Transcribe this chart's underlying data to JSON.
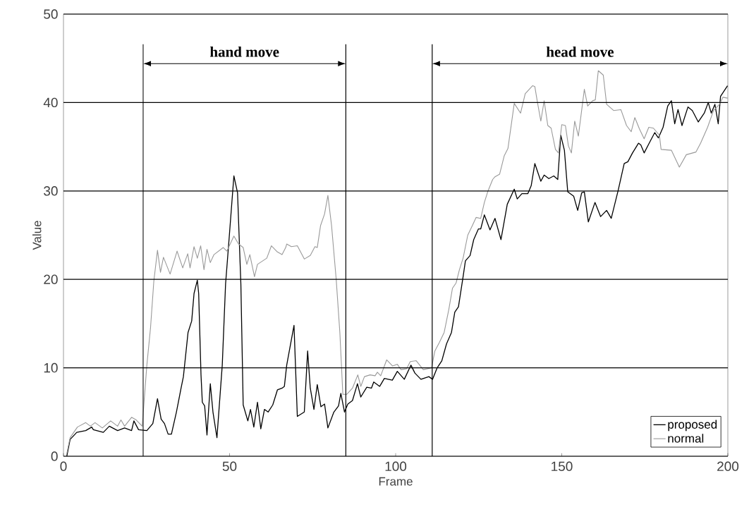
{
  "chart_data": {
    "type": "line",
    "xlabel": "Frame",
    "ylabel": "Value",
    "xlim": [
      0,
      200
    ],
    "xticks": [
      0,
      50,
      100,
      150,
      200
    ],
    "ylim": [
      0,
      50
    ],
    "yticks": [
      0,
      10,
      20,
      30,
      40,
      50
    ],
    "grid": "y",
    "legend": "bottom right",
    "marker": "none",
    "line_style": "solid",
    "ref_lines": [
      {
        "axis": "x",
        "value": 24,
        "color": "#000000"
      },
      {
        "axis": "x",
        "value": 85,
        "color": "#000000"
      },
      {
        "axis": "x",
        "value": 111,
        "color": "#000000"
      }
    ],
    "annotations": [
      "hand move",
      "head move"
    ],
    "series": [
      {
        "name": "proposed",
        "color": "#000000",
        "x": [
          1,
          2,
          4,
          6.7,
          8.5,
          9,
          12,
          13.8,
          16.3,
          18.4,
          20.5,
          21.2,
          22.6,
          25.1,
          26.9,
          28.3,
          29.4,
          30.4,
          31.5,
          32.5,
          34,
          35.4,
          36.1,
          37.5,
          38.6,
          39.3,
          40.3,
          40.7,
          41.4,
          41.8,
          42.5,
          43.2,
          44.2,
          45,
          46.2,
          47.8,
          48.8,
          49.9,
          51.3,
          52.4,
          53.4,
          54.1,
          55.5,
          56.3,
          57.3,
          58.4,
          59.4,
          60.5,
          61.6,
          63,
          64.4,
          65.8,
          66.5,
          67.2,
          69.4,
          70.4,
          72.5,
          73.5,
          74.3,
          75.4,
          76.4,
          77.5,
          78.6,
          79.6,
          81.4,
          82.8,
          83.5,
          84.6,
          85.6,
          87,
          88.5,
          89.5,
          91.3,
          92.7,
          93.4,
          95.2,
          96.6,
          99,
          100.5,
          102.6,
          104.6,
          105.8,
          107.6,
          110,
          111.1,
          112.5,
          113.9,
          115.3,
          116.8,
          117.8,
          118.9,
          120.3,
          121,
          122.4,
          123.5,
          124.9,
          125.6,
          126.7,
          128.4,
          129.9,
          131.7,
          133.6,
          135.7,
          136.6,
          138,
          139.8,
          140.8,
          141.9,
          143.7,
          144.7,
          146.1,
          147.6,
          148.8,
          149.7,
          150.8,
          151.8,
          153.6,
          154.8,
          156,
          156.8,
          158,
          160,
          161.7,
          163.5,
          164.9,
          167,
          168.8,
          169.9,
          171.3,
          173.1,
          173.8,
          174.8,
          176.6,
          178,
          179.1,
          180.5,
          181.9,
          183,
          184,
          185,
          186.2,
          188,
          189.3,
          191.1,
          192.9,
          194.1,
          195,
          196.1,
          197.1,
          197.8,
          198.5,
          199.9
        ],
        "values": [
          0,
          1.9,
          2.7,
          2.9,
          3.3,
          3.0,
          2.7,
          3.4,
          2.9,
          3.2,
          2.9,
          4.0,
          3.0,
          2.9,
          3.7,
          6.5,
          4.2,
          3.7,
          2.5,
          2.5,
          5.0,
          7.7,
          9.0,
          14.0,
          15.3,
          18.4,
          19.9,
          18.4,
          9.2,
          6.1,
          5.7,
          2.4,
          8.2,
          5.0,
          2.1,
          10.3,
          19.5,
          24.8,
          31.7,
          29.8,
          19.5,
          5.8,
          4.0,
          5.3,
          3.3,
          6.1,
          3.1,
          5.3,
          5.0,
          5.8,
          7.5,
          7.7,
          7.9,
          10.3,
          14.8,
          4.5,
          5.0,
          11.9,
          7.7,
          5.3,
          8.1,
          5.6,
          5.9,
          3.2,
          5.0,
          5.7,
          7.1,
          5.0,
          5.9,
          6.3,
          8.2,
          6.7,
          7.8,
          7.7,
          8.4,
          7.9,
          8.8,
          8.6,
          9.6,
          8.7,
          10.3,
          9.4,
          8.7,
          9.0,
          8.7,
          10.0,
          10.8,
          12.7,
          14.0,
          16.3,
          16.9,
          20.3,
          22.1,
          22.7,
          24.5,
          25.7,
          25.7,
          27.3,
          25.6,
          26.9,
          24.5,
          28.5,
          30.2,
          29.1,
          29.7,
          29.7,
          30.6,
          33.1,
          31.1,
          31.8,
          31.4,
          31.7,
          31.3,
          36.3,
          34.6,
          29.9,
          29.4,
          27.8,
          29.8,
          29.9,
          26.5,
          28.7,
          27.1,
          27.8,
          26.9,
          30.1,
          33.1,
          33.3,
          34.3,
          35.4,
          35.2,
          34.3,
          35.6,
          36.6,
          36.0,
          37.2,
          39.6,
          40.2,
          37.6,
          39.2,
          37.4,
          39.5,
          39.1,
          37.8,
          38.8,
          40.0,
          38.8,
          39.8,
          37.6,
          40.7,
          41.1,
          41.9
        ]
      },
      {
        "name": "normal",
        "color": "#999999",
        "x": [
          1,
          2,
          4.2,
          6.7,
          8.1,
          9.5,
          11.7,
          14.2,
          16.3,
          17.3,
          18.4,
          20.5,
          21.9,
          23.7,
          25.1,
          26.2,
          27.2,
          28.3,
          29.2,
          30.1,
          32.1,
          34.2,
          35.9,
          37.4,
          38.1,
          39.3,
          40.3,
          41.3,
          42.3,
          43.2,
          44.2,
          45.3,
          48.1,
          49.2,
          51.3,
          52.7,
          54.1,
          55.2,
          56.1,
          57.5,
          58.4,
          61.2,
          62.6,
          64.4,
          65.8,
          66.9,
          67.2,
          68.6,
          70.4,
          72.5,
          74.3,
          75.7,
          76.4,
          77.4,
          78.6,
          79.6,
          80.7,
          82.1,
          83.2,
          84.1,
          85.3,
          87,
          88.6,
          89.5,
          90.6,
          92.3,
          93.8,
          94.5,
          95.5,
          97.3,
          99.1,
          100.5,
          101.6,
          103.3,
          104.4,
          106.2,
          108.3,
          110.8,
          111.8,
          113.2,
          114.6,
          116,
          117.1,
          118.2,
          119.2,
          120.3,
          121.7,
          123.1,
          124.2,
          125.6,
          126.7,
          127.7,
          129.2,
          129.9,
          131.3,
          132.7,
          133.8,
          135.7,
          137.6,
          139,
          141.2,
          141.9,
          142.6,
          143.7,
          144.7,
          145.8,
          146.8,
          148.1,
          149,
          150,
          151.1,
          152,
          152.9,
          153.9,
          155,
          156.8,
          157.8,
          159.3,
          160.1,
          161,
          162.5,
          163.5,
          165.6,
          167.8,
          169.5,
          170.9,
          172,
          173.4,
          174.8,
          176.2,
          177.6,
          179.4,
          179.9,
          183,
          185.4,
          187.5,
          190.4,
          191.8,
          193.9,
          195.7,
          197.5,
          198.5,
          199.9
        ],
        "values": [
          0.3,
          2.1,
          3.3,
          3.8,
          3.4,
          3.8,
          3.2,
          4.0,
          3.4,
          4.1,
          3.4,
          4.4,
          4.1,
          3.4,
          10.3,
          14.5,
          19.8,
          23.3,
          20.8,
          22.5,
          20.6,
          23.2,
          21.3,
          22.9,
          21.3,
          23.7,
          22.4,
          23.8,
          21.1,
          23.4,
          21.9,
          22.8,
          23.6,
          23.2,
          24.9,
          24.0,
          23.6,
          21.7,
          22.8,
          20.3,
          21.7,
          22.4,
          23.8,
          23.1,
          22.8,
          23.6,
          24.0,
          23.7,
          23.8,
          22.3,
          22.7,
          23.7,
          23.6,
          26.1,
          27.4,
          29.5,
          26.1,
          20.0,
          14.0,
          7.0,
          7.0,
          7.7,
          9.2,
          7.9,
          9.0,
          9.2,
          9.1,
          9.5,
          9.1,
          10.9,
          10.2,
          10.4,
          9.8,
          9.9,
          10.7,
          10.8,
          9.8,
          10.0,
          11.9,
          12.9,
          14.0,
          16.6,
          19.0,
          19.6,
          21.1,
          22.4,
          25.0,
          26.1,
          27.0,
          26.9,
          28.7,
          29.9,
          31.3,
          31.6,
          31.9,
          34.0,
          34.8,
          39.9,
          38.8,
          41.0,
          41.9,
          41.8,
          40.2,
          37.9,
          40.2,
          37.4,
          37.1,
          34.7,
          34.3,
          37.5,
          37.4,
          35.1,
          34.3,
          37.9,
          36.2,
          41.5,
          39.6,
          40.2,
          40.3,
          43.6,
          43.1,
          39.8,
          39.1,
          39.2,
          37.4,
          36.7,
          38.3,
          37.0,
          35.9,
          37.2,
          37.1,
          36.3,
          34.7,
          34.6,
          32.7,
          34.1,
          34.4,
          35.4,
          37.2,
          39.1,
          39.8,
          40.6,
          40.5
        ]
      }
    ]
  }
}
